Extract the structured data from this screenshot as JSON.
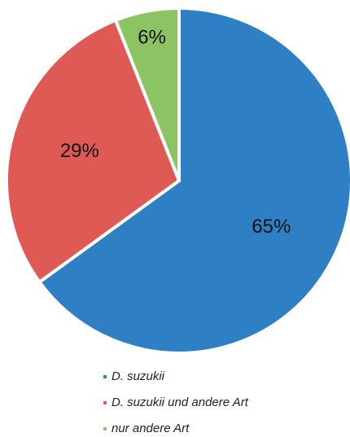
{
  "chart_data": {
    "type": "pie",
    "categories": [
      "D. suzukii",
      "D. suzukii und andere Art",
      "nur andere Art"
    ],
    "values": [
      65,
      29,
      6
    ],
    "value_labels": [
      "65%",
      "29%",
      "6%"
    ],
    "colors": [
      "#2e7fc4",
      "#e05a55",
      "#8cc464"
    ]
  }
}
